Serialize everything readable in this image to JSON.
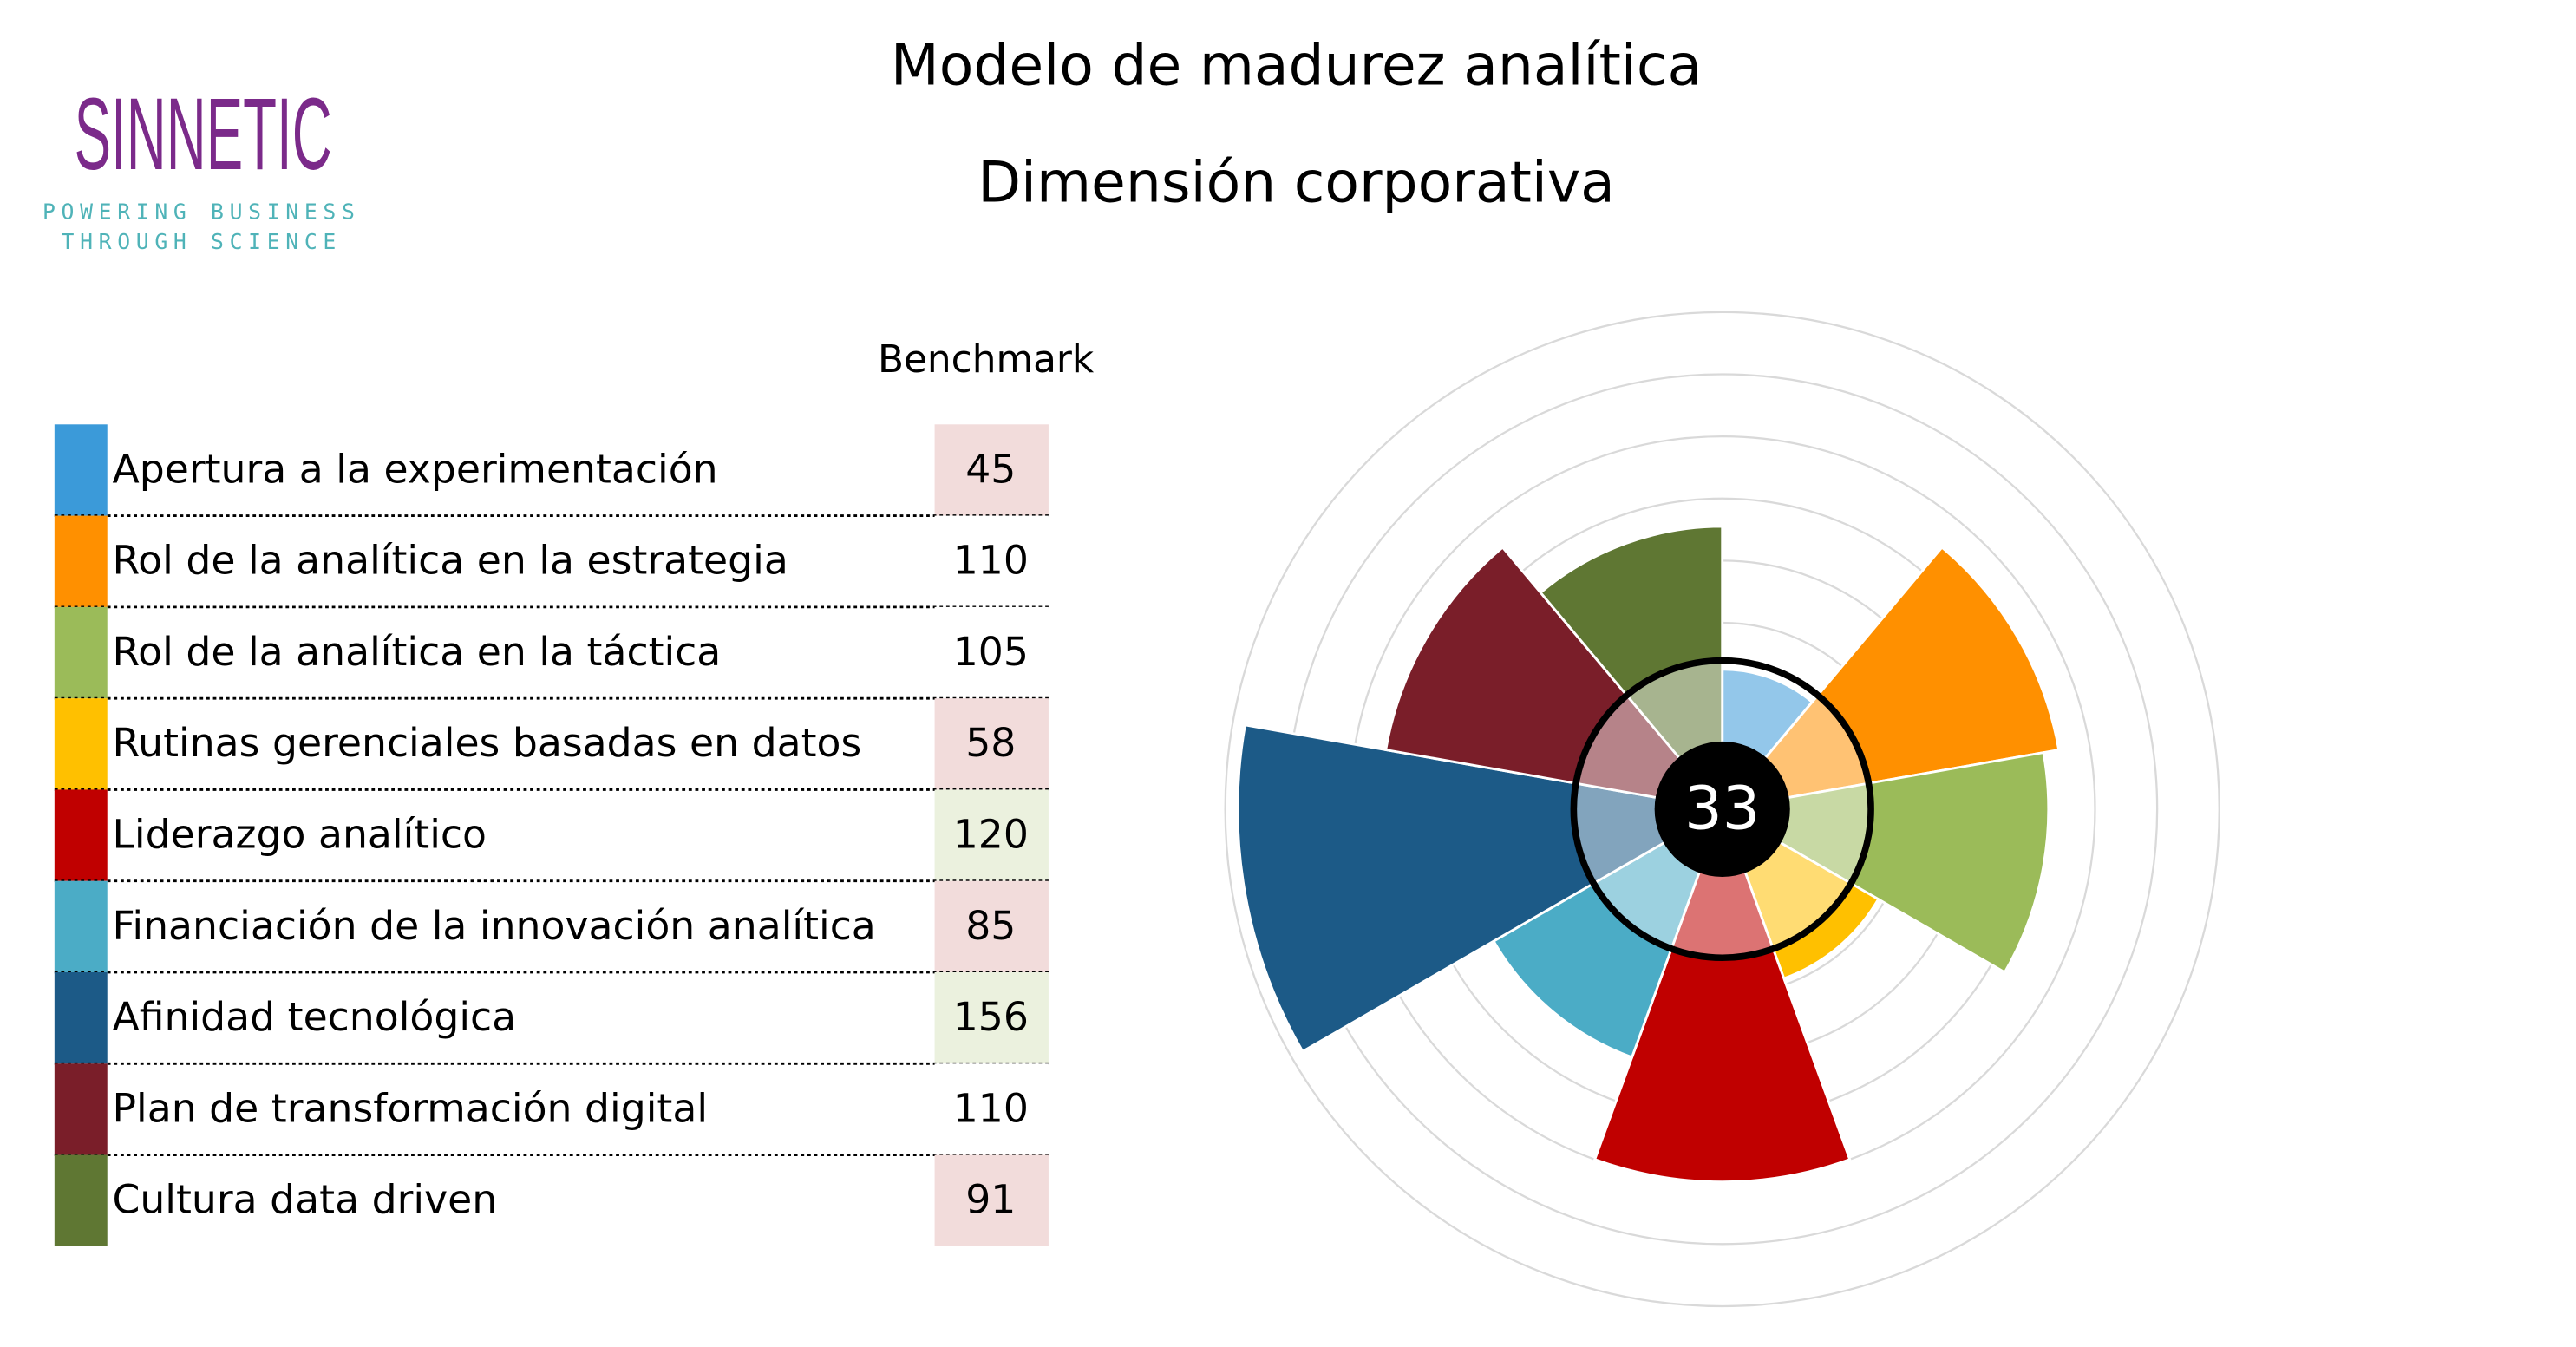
{
  "logo": {
    "name": "SINNETIC",
    "tagline_1": "POWERING BUSINESS",
    "tagline_2": "THROUGH SCIENCE"
  },
  "chart_data": {
    "type": "polar-area",
    "title": "Modelo de madurez analítica",
    "subtitle": "Dimensión corporativa",
    "column_header": "Benchmark",
    "score": 33,
    "categories": [
      "Apertura a la experimentación",
      "Rol de la analítica en la estrategia",
      "Rol de la analítica en la táctica",
      "Rutinas gerenciales basadas en datos",
      "Liderazgo analítico",
      "Financiación de la innovación analítica",
      "Afinidad tecnológica",
      "Plan de transformación digital",
      "Cultura data driven"
    ],
    "values": [
      45,
      110,
      105,
      58,
      120,
      85,
      156,
      110,
      91
    ],
    "colors": [
      "#3b9ad9",
      "#ff9000",
      "#9bbb59",
      "#ffc000",
      "#c00000",
      "#4bacc6",
      "#1c5a87",
      "#7a1e29",
      "#5f7733"
    ],
    "cell_colors": [
      "#f2dcdb",
      "#ffffff",
      "#ffffff",
      "#f2dcdb",
      "#ebf1de",
      "#f2dcdb",
      "#ebf1de",
      "#ffffff",
      "#f2dcdb"
    ],
    "ylim": [
      0,
      160
    ],
    "yticks": [
      20,
      40,
      60,
      80,
      100,
      120,
      140,
      160
    ],
    "grid": true
  }
}
